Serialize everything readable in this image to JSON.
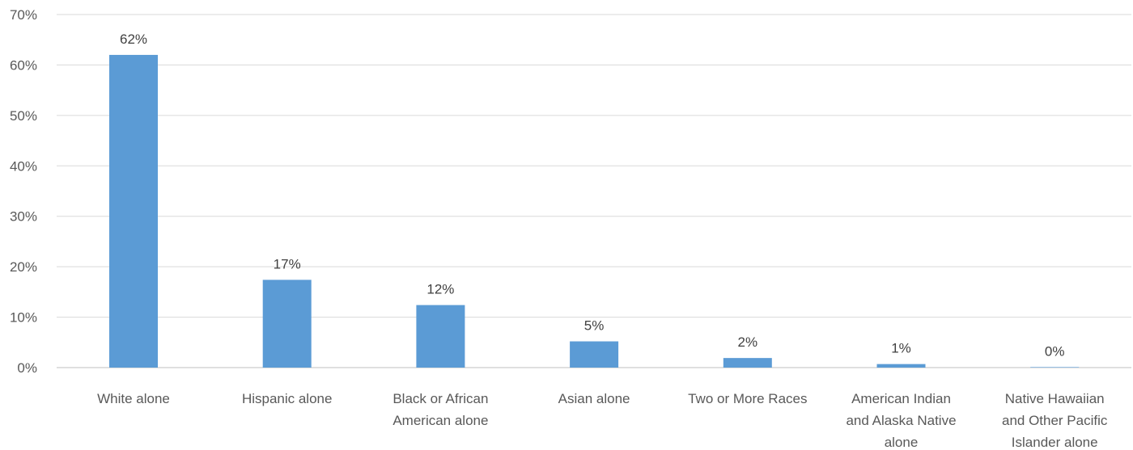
{
  "chart_data": {
    "type": "bar",
    "categories": [
      "White alone",
      "Hispanic alone",
      "Black or African American alone",
      "Asian alone",
      "Two or More Races",
      "American Indian and Alaska Native alone",
      "Native Hawaiian and Other Pacific Islander alone"
    ],
    "category_label_lines": [
      [
        "White alone"
      ],
      [
        "Hispanic alone"
      ],
      [
        "Black or African",
        "American alone"
      ],
      [
        "Asian alone"
      ],
      [
        "Two or More Races"
      ],
      [
        "American Indian",
        "and Alaska Native",
        "alone"
      ],
      [
        "Native Hawaiian",
        "and Other Pacific",
        "Islander alone"
      ]
    ],
    "values": [
      62.0,
      17.4,
      12.4,
      5.2,
      1.9,
      0.7,
      0.1
    ],
    "data_labels": [
      "62%",
      "17%",
      "12%",
      "5%",
      "2%",
      "1%",
      "0%"
    ],
    "y_ticks": [
      0,
      10,
      20,
      30,
      40,
      50,
      60,
      70
    ],
    "y_tick_labels": [
      "0%",
      "10%",
      "20%",
      "30%",
      "40%",
      "50%",
      "60%",
      "70%"
    ],
    "ylim": [
      0,
      70
    ],
    "grid": true,
    "legend": "none",
    "title": "",
    "xlabel": "",
    "ylabel": "",
    "colors": {
      "bar": "#5b9bd5",
      "grid": "#d9d9d9",
      "axis": "#bfbfbf"
    }
  }
}
